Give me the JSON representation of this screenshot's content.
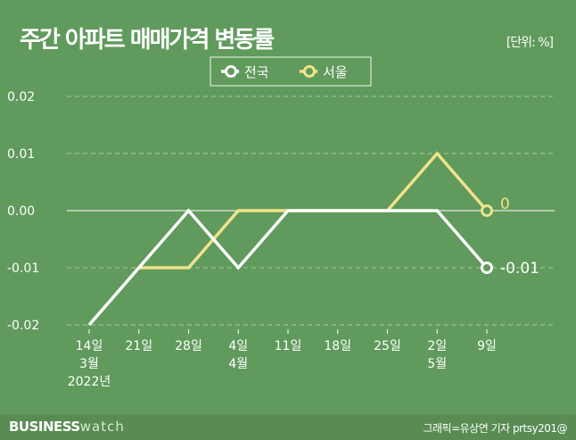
{
  "header": {
    "title": "주간 아파트 매매가격 변동률",
    "unit": "[단위: %]"
  },
  "footer": {
    "brand_bold": "BUSINESS",
    "brand_light": "watch",
    "credit": "그래픽=유상연 기자 prtsy201@"
  },
  "chart_data": {
    "type": "line",
    "title": "주간 아파트 매매가격 변동률",
    "categories": [
      [
        "14일",
        "3월",
        "2022년"
      ],
      [
        "21일"
      ],
      [
        "28일"
      ],
      [
        "4일",
        "4월"
      ],
      [
        "11일"
      ],
      [
        "18일"
      ],
      [
        "25일"
      ],
      [
        "2일",
        "5월"
      ],
      [
        "9일"
      ]
    ],
    "yticks": [
      "0.02",
      "0.01",
      "0.00",
      "-0.01",
      "-0.02"
    ],
    "ylim": [
      -0.02,
      0.02
    ],
    "grid": true,
    "legend": "top-center",
    "series": [
      {
        "name": "서울",
        "color": "#efe38a",
        "values": [
          -0.02,
          -0.01,
          -0.01,
          0,
          0,
          0,
          0,
          0.01,
          0
        ],
        "end_label": "0"
      },
      {
        "name": "전국",
        "color": "#ffffff",
        "values": [
          -0.02,
          -0.01,
          0,
          -0.01,
          0,
          0,
          0,
          0,
          -0.01
        ],
        "end_label": "-0.01"
      }
    ]
  }
}
